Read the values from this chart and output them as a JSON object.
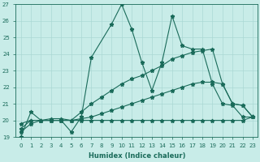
{
  "title": "",
  "xlabel": "Humidex (Indice chaleur)",
  "ylabel": "",
  "bg_color": "#c8ece8",
  "grid_color": "#aad8d4",
  "line_color": "#1a6b5a",
  "xlim": [
    -0.5,
    23.5
  ],
  "ylim": [
    19,
    27
  ],
  "yticks": [
    19,
    20,
    21,
    22,
    23,
    24,
    25,
    26,
    27
  ],
  "xticks": [
    0,
    1,
    2,
    3,
    4,
    5,
    6,
    7,
    8,
    9,
    10,
    11,
    12,
    13,
    14,
    15,
    16,
    17,
    18,
    19,
    20,
    21,
    22,
    23
  ],
  "series": [
    {
      "x": [
        0,
        1,
        2,
        3,
        4,
        5,
        6,
        7,
        9,
        10,
        11,
        12,
        13,
        14,
        15,
        16,
        17,
        18,
        19,
        20,
        21,
        22,
        23
      ],
      "y": [
        19.0,
        20.5,
        20.0,
        20.0,
        20.0,
        19.3,
        20.2,
        23.8,
        25.8,
        27.0,
        25.5,
        23.5,
        21.8,
        23.5,
        26.3,
        24.5,
        24.3,
        24.3,
        22.2,
        21.0,
        20.9,
        20.2,
        20.2
      ]
    },
    {
      "x": [
        0,
        1,
        2,
        3,
        4,
        5,
        6,
        7,
        8,
        9,
        10,
        11,
        12,
        13,
        14,
        15,
        16,
        17,
        18,
        19,
        20,
        21,
        22,
        23
      ],
      "y": [
        19.8,
        20.0,
        20.0,
        20.0,
        20.0,
        20.0,
        20.0,
        20.0,
        20.0,
        20.0,
        20.0,
        20.0,
        20.0,
        20.0,
        20.0,
        20.0,
        20.0,
        20.0,
        20.0,
        20.0,
        20.0,
        20.0,
        20.0,
        20.2
      ]
    },
    {
      "x": [
        0,
        1,
        2,
        3,
        4,
        5,
        6,
        7,
        8,
        9,
        10,
        11,
        12,
        13,
        14,
        15,
        16,
        17,
        18,
        19,
        20,
        21,
        22,
        23
      ],
      "y": [
        19.5,
        20.0,
        20.0,
        20.1,
        20.1,
        20.0,
        20.5,
        21.0,
        21.4,
        21.8,
        22.2,
        22.5,
        22.7,
        23.0,
        23.3,
        23.7,
        23.9,
        24.1,
        24.2,
        24.3,
        22.2,
        21.0,
        20.9,
        20.2
      ]
    },
    {
      "x": [
        0,
        1,
        2,
        3,
        4,
        5,
        6,
        7,
        8,
        9,
        10,
        11,
        12,
        13,
        14,
        15,
        16,
        17,
        18,
        19,
        20,
        21,
        22,
        23
      ],
      "y": [
        19.3,
        19.8,
        20.0,
        20.0,
        20.0,
        20.0,
        20.1,
        20.2,
        20.4,
        20.6,
        20.8,
        21.0,
        21.2,
        21.4,
        21.6,
        21.8,
        22.0,
        22.2,
        22.3,
        22.3,
        22.2,
        21.0,
        20.9,
        20.2
      ]
    }
  ]
}
